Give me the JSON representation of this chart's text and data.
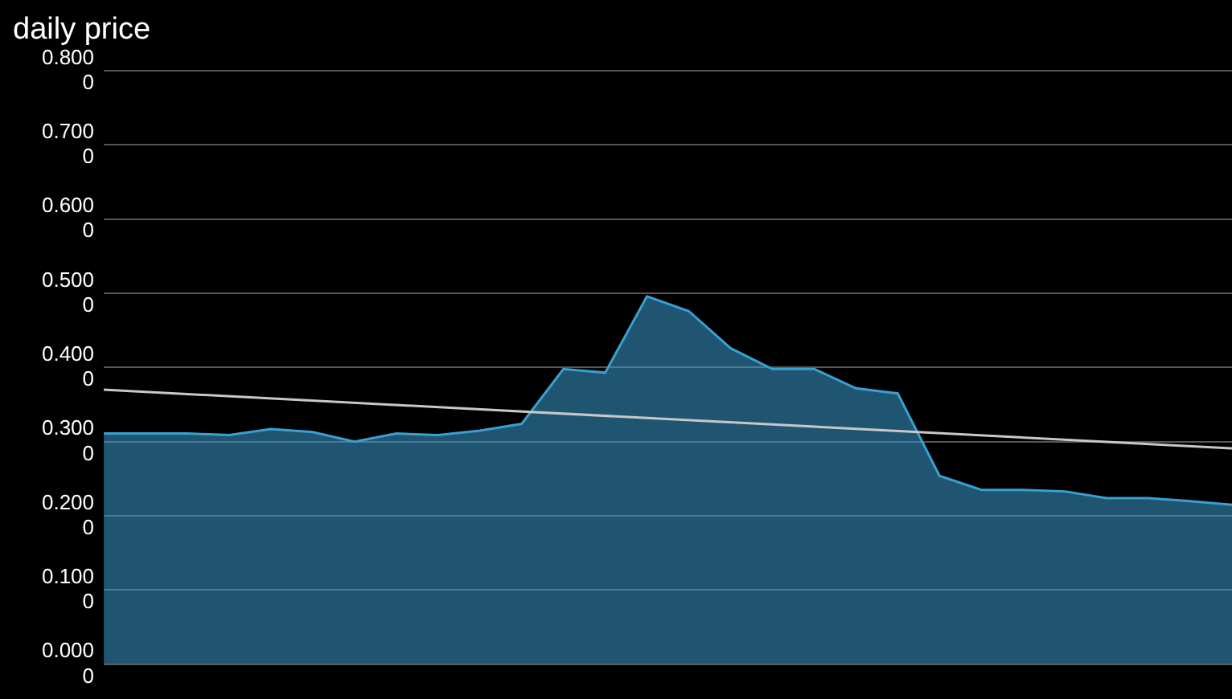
{
  "chart_data": {
    "type": "area",
    "title": "daily price",
    "categories": [
      null,
      null,
      null,
      null,
      null,
      null,
      null,
      null,
      null,
      null,
      null,
      null,
      null,
      null,
      null,
      null,
      null,
      null,
      null,
      null,
      null,
      null,
      null,
      null,
      null,
      null,
      null,
      null
    ],
    "series": [
      {
        "color": "#3aa0d2",
        "values": [
          0.311,
          0.311,
          0.311,
          0.309,
          0.317,
          0.313,
          0.3,
          0.311,
          0.309,
          0.315,
          0.324,
          0.398,
          0.393,
          0.496,
          0.476,
          0.426,
          0.398,
          0.398,
          0.372,
          0.365,
          0.254,
          0.235,
          0.235,
          0.233,
          0.224,
          0.224,
          0.22,
          0.215
        ]
      },
      {
        "type": "line",
        "color": "#c8c8c8",
        "values": [
          0.37,
          null,
          null,
          null,
          null,
          null,
          null,
          null,
          null,
          null,
          null,
          null,
          null,
          null,
          null,
          null,
          null,
          null,
          null,
          null,
          null,
          null,
          null,
          null,
          null,
          null,
          null,
          0.291
        ]
      }
    ],
    "ylim": [
      0,
      0.8
    ],
    "yticks": [
      {
        "value": 0,
        "label": "0.0000"
      },
      {
        "value": 0.1,
        "label": "0.1000"
      },
      {
        "value": 0.2,
        "label": "0.2000"
      },
      {
        "value": 0.3,
        "label": "0.3000"
      },
      {
        "value": 0.4,
        "label": "0.4000"
      },
      {
        "value": 0.5,
        "label": "0.5000"
      },
      {
        "value": 0.6,
        "label": "0.6000"
      },
      {
        "value": 0.7,
        "label": "0.7000"
      },
      {
        "value": 0.8,
        "label": "0.8000"
      }
    ],
    "grid": "y"
  }
}
